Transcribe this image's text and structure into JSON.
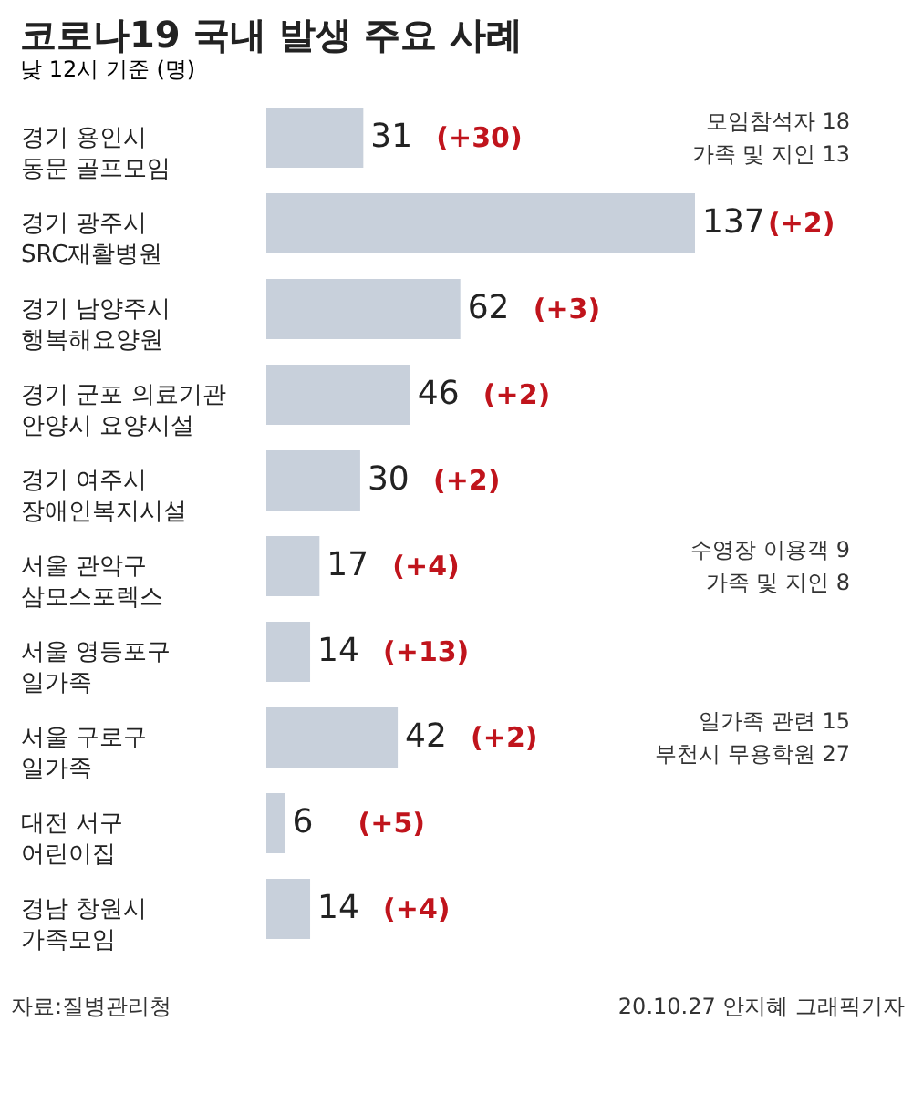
{
  "chart_data": {
    "type": "bar",
    "orientation": "horizontal",
    "title": "코로나19 국내 발생 주요 사례",
    "subtitle": "낮 12시 기준 (명)",
    "categories": [
      "경기 용인시\n동문 골프모임",
      "경기 광주시\nSRC재활병원",
      "경기 남양주시\n행복해요양원",
      "경기 군포 의료기관\n안양시 요양시설",
      "경기 여주시\n장애인복지시설",
      "서울 관악구\n삼모스포렉스",
      "서울 영등포구\n일가족",
      "서울 구로구\n일가족",
      "대전 서구\n어린이집",
      "경남 창원시\n가족모임"
    ],
    "series": [
      {
        "color": "#c8d0db",
        "values": [
          31,
          137,
          62,
          46,
          30,
          17,
          14,
          42,
          6,
          14
        ]
      }
    ],
    "data_labels": true,
    "annotations": [
      "(+30)",
      "(+2)",
      "(+3)",
      "(+2)",
      "(+2)",
      "(+4)",
      "(+13)",
      "(+2)",
      "(+5)",
      "(+4)",
      "모임참석자 18",
      "가족 및 지인 13",
      "수영장 이용객 9",
      "가족 및 지인 8",
      "일가족 관련 15",
      "부천시 무용학원 27",
      "자료:질병관리청",
      "20.10.27 안지혜 그래픽기자"
    ]
  }
}
